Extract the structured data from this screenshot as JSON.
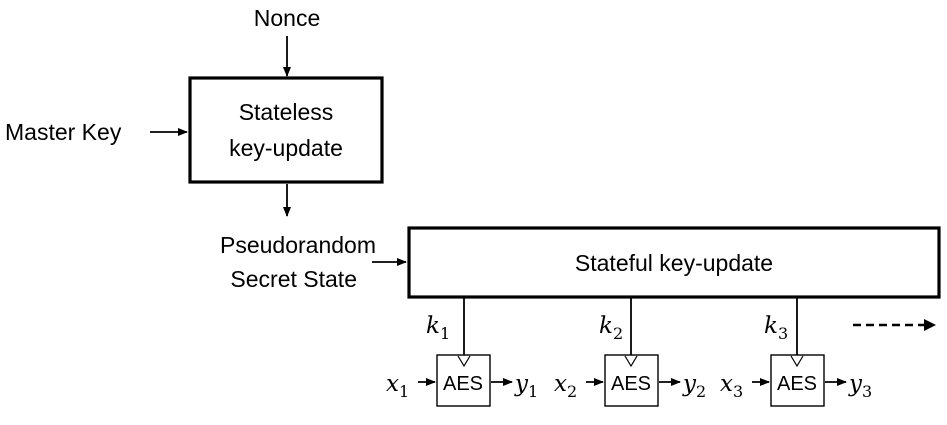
{
  "labels": {
    "nonce": "Nonce",
    "master_key": "Master Key",
    "stateless_line1": "Stateless",
    "stateless_line2": "key-update",
    "pseudorandom_line1": "Pseudorandom",
    "pseudorandom_line2": "Secret State",
    "stateful": "Stateful key-update"
  },
  "aes_blocks": [
    {
      "label": "AES",
      "key": "k",
      "key_sub": "1",
      "input": "x",
      "input_sub": "1",
      "output": "y",
      "output_sub": "1"
    },
    {
      "label": "AES",
      "key": "k",
      "key_sub": "2",
      "input": "x",
      "input_sub": "2",
      "output": "y",
      "output_sub": "2"
    },
    {
      "label": "AES",
      "key": "k",
      "key_sub": "3",
      "input": "x",
      "input_sub": "3",
      "output": "y",
      "output_sub": "3"
    }
  ],
  "colors": {
    "stroke": "#000000",
    "background": "#ffffff"
  }
}
